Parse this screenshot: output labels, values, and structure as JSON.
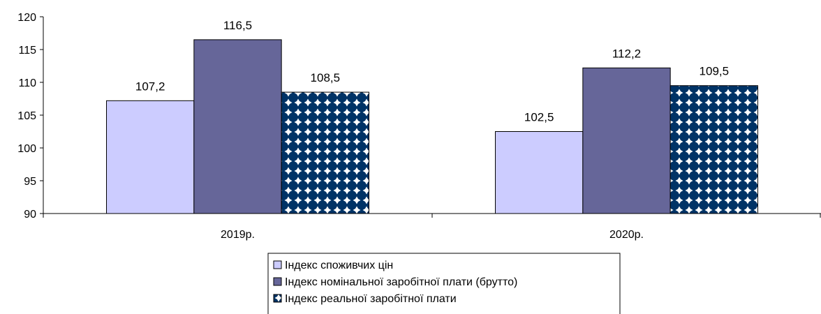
{
  "chart_data": {
    "type": "bar",
    "title": "",
    "xlabel": "",
    "ylabel": "",
    "categories": [
      "2019р.",
      "2020р."
    ],
    "ylim": [
      90,
      120
    ],
    "y_ticks": [
      "90",
      "95",
      "100",
      "105",
      "110",
      "115",
      "120"
    ],
    "grid": false,
    "legend_position": "bottom",
    "series": [
      {
        "name": "Індекс споживчих цін",
        "values": [
          107.2,
          102.5
        ],
        "labels": [
          "107,2",
          "102,5"
        ],
        "color": "#ccccff",
        "pattern": "solid"
      },
      {
        "name": "Індекс номінальної заробітної плати (брутто)",
        "values": [
          116.5,
          112.2
        ],
        "labels": [
          "116,5",
          "112,2"
        ],
        "color": "#666699",
        "pattern": "solid"
      },
      {
        "name": "Індекс реальної заробітної плати",
        "values": [
          108.5,
          109.5
        ],
        "labels": [
          "108,5",
          "109,5"
        ],
        "color": "#003366",
        "pattern": "diamond-dots"
      }
    ]
  }
}
